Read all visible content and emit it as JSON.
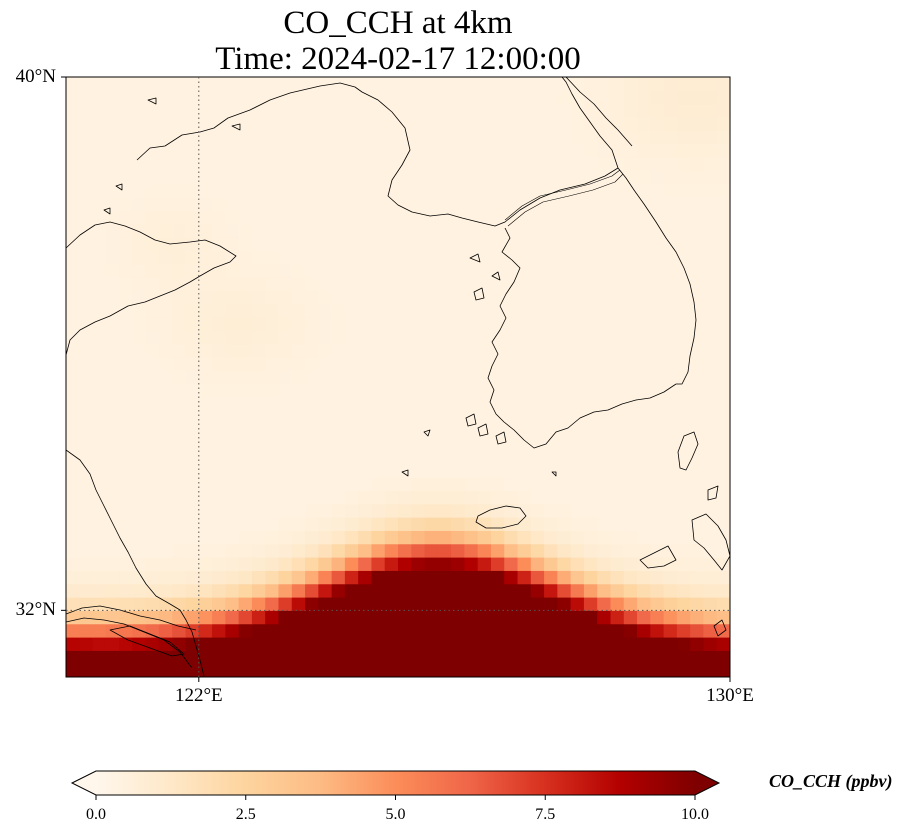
{
  "figure": {
    "title_line1": "CO_CCH at 4km",
    "title_line2": "Time: 2024-02-17 12:00:00"
  },
  "map": {
    "projection": "lat-lon",
    "lon_range": [
      120,
      130
    ],
    "lat_range": [
      31,
      40
    ],
    "gridlines": "dotted",
    "lat_ticks": [
      {
        "value": 40,
        "label": "40°N"
      },
      {
        "value": 32,
        "label": "32°N"
      }
    ],
    "lon_ticks": [
      {
        "value": 122,
        "label": "122°E"
      },
      {
        "value": 130,
        "label": "130°E"
      }
    ],
    "colormap": "OrRd",
    "coastline_color": "#000000",
    "field_description_levels": {
      "background_ppbv": 0.4,
      "hotspot_lon": 125.6,
      "hotspot_lat": 31.2,
      "max_ppbv": 10.0
    }
  },
  "colorbar": {
    "label": "CO_CCH (ppbv)",
    "min": 0.0,
    "max": 10.0,
    "extend": "both",
    "ticks": [
      {
        "value": 0.0,
        "label": "0.0"
      },
      {
        "value": 2.5,
        "label": "2.5"
      },
      {
        "value": 5.0,
        "label": "5.0"
      },
      {
        "value": 7.5,
        "label": "7.5"
      },
      {
        "value": 10.0,
        "label": "10.0"
      }
    ],
    "stops": [
      {
        "value": 0.0,
        "color": "#fff7ec"
      },
      {
        "value": 1.25,
        "color": "#fee8c8"
      },
      {
        "value": 2.5,
        "color": "#fdd49e"
      },
      {
        "value": 3.75,
        "color": "#fdbb84"
      },
      {
        "value": 5.0,
        "color": "#fc8d59"
      },
      {
        "value": 6.25,
        "color": "#ef6548"
      },
      {
        "value": 7.5,
        "color": "#d7301f"
      },
      {
        "value": 8.75,
        "color": "#b30000"
      },
      {
        "value": 10.0,
        "color": "#7f0000"
      }
    ]
  }
}
